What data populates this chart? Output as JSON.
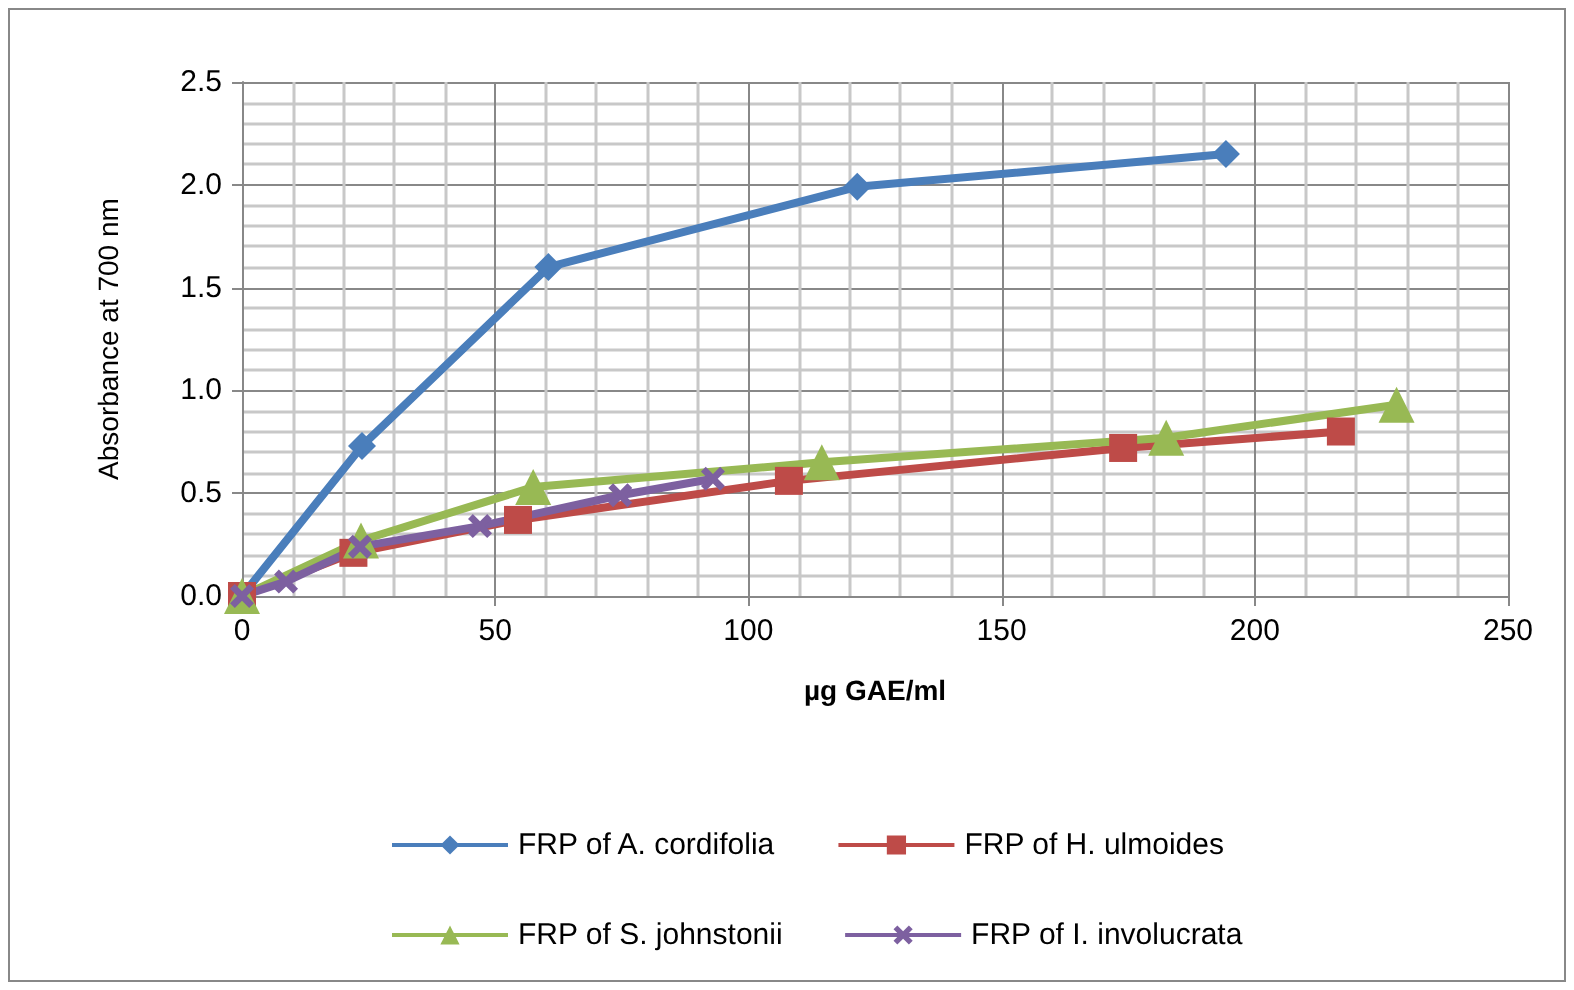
{
  "chart_data": {
    "type": "line",
    "xlabel": "µg GAE/ml",
    "ylabel": "Absorbance at 700 nm",
    "series": [
      {
        "name": "FRP of A. cordifolia",
        "color": "#4a7ebb",
        "marker": "diamond",
        "x": [
          0,
          23.7,
          60.5,
          121.5,
          194.3
        ],
        "values": [
          0,
          0.73,
          1.6,
          1.99,
          2.15
        ]
      },
      {
        "name": "FRP of H. ulmoides",
        "color": "#be4b48",
        "marker": "square",
        "x": [
          0,
          22,
          54.5,
          108,
          174,
          217
        ],
        "values": [
          0,
          0.21,
          0.37,
          0.56,
          0.72,
          0.8
        ]
      },
      {
        "name": "FRP of S. johnstonii",
        "color": "#98b954",
        "marker": "triangle",
        "x": [
          0,
          23.5,
          57.5,
          114.5,
          182.5,
          228
        ],
        "values": [
          0,
          0.27,
          0.53,
          0.65,
          0.77,
          0.93
        ]
      },
      {
        "name": "FRP of I. involucrata",
        "color": "#7d60a0",
        "marker": "cross",
        "x": [
          0,
          8.7,
          23.3,
          47,
          74.7,
          93
        ],
        "values": [
          0,
          0.07,
          0.24,
          0.34,
          0.49,
          0.57
        ]
      }
    ],
    "xlim": [
      0,
      250
    ],
    "xticks": [
      0,
      50,
      100,
      150,
      200,
      250
    ],
    "ylim": [
      0,
      2.5
    ],
    "yticks": [
      {
        "value": 0,
        "label": "0.0"
      },
      {
        "value": 0.5,
        "label": "0.5"
      },
      {
        "value": 1,
        "label": "1.0"
      },
      {
        "value": 1.5,
        "label": "1.5"
      },
      {
        "value": 2,
        "label": "2.0"
      },
      {
        "value": 2.5,
        "label": "2.5"
      }
    ],
    "grid": true,
    "legend": "bottom",
    "line_style": "solid"
  }
}
